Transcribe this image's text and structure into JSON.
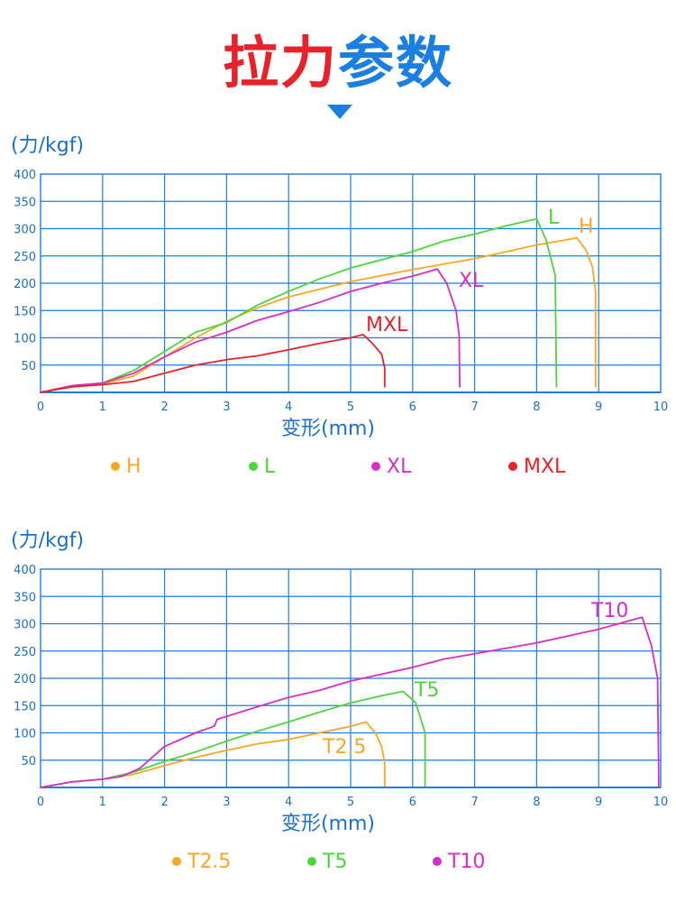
{
  "header": {
    "title_red": "拉力",
    "title_blue": "参数",
    "arrow_icon": "triangle-down-icon"
  },
  "colors": {
    "axis": "#1a7fe0",
    "grid": "#1a7fe0",
    "H": "#f9a825",
    "L": "#4cd63c",
    "XL": "#d62ec7",
    "MXL": "#e8222a",
    "T2.5": "#f9a825",
    "T5": "#4cd63c",
    "T10": "#d62ec7"
  },
  "chart_data": [
    {
      "type": "line",
      "ylabel": "(力/kgf)",
      "xlabel": "变形(mm)",
      "xlim": [
        0,
        10
      ],
      "ylim": [
        0,
        400
      ],
      "xticks": [
        0,
        1,
        2,
        3,
        4,
        5,
        6,
        7,
        8,
        9,
        10
      ],
      "yticks": [
        50,
        100,
        150,
        200,
        250,
        300,
        350,
        400
      ],
      "grid": true,
      "legend": [
        "H",
        "L",
        "XL",
        "MXL"
      ],
      "series": [
        {
          "name": "H",
          "color_key": "H",
          "label": "H",
          "points": [
            [
              0,
              0
            ],
            [
              0.5,
              10
            ],
            [
              1,
              15
            ],
            [
              1.5,
              30
            ],
            [
              2,
              65
            ],
            [
              2.5,
              100
            ],
            [
              3,
              130
            ],
            [
              3.5,
              155
            ],
            [
              4,
              175
            ],
            [
              5,
              203
            ],
            [
              6,
              225
            ],
            [
              7,
              245
            ],
            [
              8,
              270
            ],
            [
              8.65,
              283
            ],
            [
              8.8,
              260
            ],
            [
              8.9,
              230
            ],
            [
              8.95,
              185
            ],
            [
              8.95,
              10
            ]
          ]
        },
        {
          "name": "L",
          "color_key": "L",
          "label": "L",
          "points": [
            [
              0,
              0
            ],
            [
              0.5,
              12
            ],
            [
              1,
              17
            ],
            [
              1.5,
              40
            ],
            [
              2,
              75
            ],
            [
              2.5,
              110
            ],
            [
              3,
              128
            ],
            [
              3.5,
              160
            ],
            [
              4,
              185
            ],
            [
              4.5,
              208
            ],
            [
              5,
              228
            ],
            [
              6,
              258
            ],
            [
              6.5,
              277
            ],
            [
              7,
              290
            ],
            [
              7.5,
              305
            ],
            [
              8,
              318
            ],
            [
              8.15,
              280
            ],
            [
              8.3,
              215
            ],
            [
              8.32,
              10
            ]
          ]
        },
        {
          "name": "XL",
          "color_key": "XL",
          "label": "XL",
          "points": [
            [
              0,
              0
            ],
            [
              0.5,
              12
            ],
            [
              1,
              17
            ],
            [
              1.5,
              35
            ],
            [
              2,
              65
            ],
            [
              2.5,
              92
            ],
            [
              3,
              110
            ],
            [
              3.5,
              132
            ],
            [
              4,
              148
            ],
            [
              4.5,
              165
            ],
            [
              5,
              185
            ],
            [
              5.5,
              200
            ],
            [
              6,
              213
            ],
            [
              6.4,
              226
            ],
            [
              6.55,
              200
            ],
            [
              6.7,
              150
            ],
            [
              6.75,
              105
            ],
            [
              6.76,
              10
            ]
          ]
        },
        {
          "name": "MXL",
          "color_key": "MXL",
          "label": "MXL",
          "points": [
            [
              0,
              0
            ],
            [
              0.5,
              10
            ],
            [
              1,
              14
            ],
            [
              1.5,
              20
            ],
            [
              2,
              35
            ],
            [
              2.5,
              50
            ],
            [
              3,
              60
            ],
            [
              3.5,
              67
            ],
            [
              4,
              78
            ],
            [
              4.5,
              90
            ],
            [
              5,
              100
            ],
            [
              5.2,
              106
            ],
            [
              5.35,
              90
            ],
            [
              5.5,
              70
            ],
            [
              5.55,
              45
            ],
            [
              5.55,
              10
            ]
          ]
        }
      ]
    },
    {
      "type": "line",
      "ylabel": "(力/kgf)",
      "xlabel": "变形(mm)",
      "xlim": [
        0,
        10
      ],
      "ylim": [
        0,
        400
      ],
      "xticks": [
        0,
        1,
        2,
        3,
        4,
        5,
        6,
        7,
        8,
        9,
        10
      ],
      "yticks": [
        50,
        100,
        150,
        200,
        250,
        300,
        350,
        400
      ],
      "grid": true,
      "legend": [
        "T2.5",
        "T5",
        "T10"
      ],
      "series": [
        {
          "name": "T2.5",
          "color_key": "T2.5",
          "label": "T2.5",
          "points": [
            [
              0,
              0
            ],
            [
              0.5,
              10
            ],
            [
              1,
              15
            ],
            [
              1.5,
              24
            ],
            [
              2,
              40
            ],
            [
              2.5,
              55
            ],
            [
              3,
              68
            ],
            [
              3.5,
              80
            ],
            [
              4,
              88
            ],
            [
              4.5,
              100
            ],
            [
              5,
              112
            ],
            [
              5.25,
              120
            ],
            [
              5.4,
              100
            ],
            [
              5.5,
              75
            ],
            [
              5.55,
              45
            ],
            [
              5.55,
              3
            ]
          ]
        },
        {
          "name": "T5",
          "color_key": "T5",
          "label": "T5",
          "points": [
            [
              0,
              0
            ],
            [
              0.5,
              10
            ],
            [
              1,
              15
            ],
            [
              1.5,
              28
            ],
            [
              2,
              48
            ],
            [
              2.5,
              65
            ],
            [
              3,
              85
            ],
            [
              3.5,
              103
            ],
            [
              4,
              120
            ],
            [
              4.5,
              138
            ],
            [
              5,
              155
            ],
            [
              5.5,
              168
            ],
            [
              5.85,
              176
            ],
            [
              6.05,
              155
            ],
            [
              6.2,
              100
            ],
            [
              6.2,
              3
            ]
          ]
        },
        {
          "name": "T10",
          "color_key": "T10",
          "label": "T10",
          "points": [
            [
              0,
              0
            ],
            [
              0.5,
              10
            ],
            [
              1,
              15
            ],
            [
              1.3,
              20
            ],
            [
              1.6,
              35
            ],
            [
              1.8,
              55
            ],
            [
              2,
              75
            ],
            [
              2.5,
              100
            ],
            [
              2.8,
              112
            ],
            [
              2.85,
              125
            ],
            [
              3,
              130
            ],
            [
              3.5,
              148
            ],
            [
              4,
              165
            ],
            [
              4.5,
              178
            ],
            [
              5,
              195
            ],
            [
              6,
              220
            ],
            [
              6.5,
              235
            ],
            [
              7,
              245
            ],
            [
              8,
              265
            ],
            [
              9,
              290
            ],
            [
              9.7,
              312
            ],
            [
              9.85,
              260
            ],
            [
              9.95,
              200
            ],
            [
              9.97,
              3
            ]
          ]
        }
      ]
    }
  ]
}
